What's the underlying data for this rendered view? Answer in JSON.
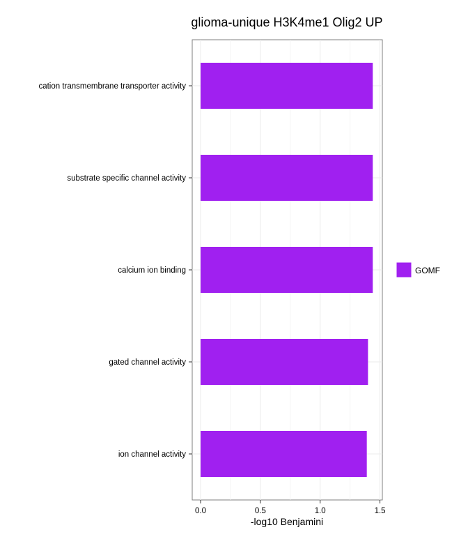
{
  "chart_data": {
    "type": "bar",
    "orientation": "horizontal",
    "title": "glioma-unique H3K4me1 Olig2 UP",
    "xlabel": "-log10 Benjamini",
    "ylabel": "",
    "categories": [
      "cation transmembrane transporter activity",
      "substrate specific channel activity",
      "calcium ion binding",
      "gated channel activity",
      "ion channel activity"
    ],
    "series": [
      {
        "name": "GOMF",
        "color": "#A020F0",
        "values": [
          1.44,
          1.44,
          1.44,
          1.4,
          1.39
        ]
      }
    ],
    "xlim": [
      -0.07,
      1.52
    ],
    "xticks": [
      0.0,
      0.5,
      1.0,
      1.5
    ],
    "xtick_labels": [
      "0.0",
      "0.5",
      "1.0",
      "1.5"
    ],
    "grid": true,
    "legend": {
      "position": "right",
      "entries": [
        "GOMF"
      ]
    }
  }
}
